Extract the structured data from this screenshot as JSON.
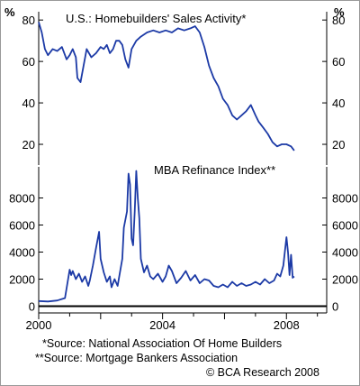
{
  "chart_data": [
    {
      "type": "line",
      "title": "U.S.:   Homebuilders' Sales Activity*",
      "ylabel": "%",
      "ylim": [
        10,
        84
      ],
      "yticks": [
        20,
        40,
        60,
        80
      ],
      "xlim": [
        2000,
        2009.3
      ],
      "grid": false,
      "legend": "none",
      "color": "#1c3aa6",
      "series": [
        {
          "x": [
            2000.0,
            2000.1,
            2000.2,
            2000.3,
            2000.45,
            2000.6,
            2000.75,
            2000.9,
            2001.0,
            2001.1,
            2001.2,
            2001.25,
            2001.35,
            2001.45,
            2001.55,
            2001.7,
            2001.85,
            2002.0,
            2002.1,
            2002.2,
            2002.3,
            2002.4,
            2002.5,
            2002.6,
            2002.7,
            2002.8,
            2002.9,
            2003.0,
            2003.15,
            2003.3,
            2003.5,
            2003.7,
            2003.9,
            2004.1,
            2004.3,
            2004.5,
            2004.7,
            2004.9,
            2005.05,
            2005.2,
            2005.35,
            2005.5,
            2005.65,
            2005.8,
            2005.95,
            2006.1,
            2006.25,
            2006.4,
            2006.55,
            2006.7,
            2006.85,
            2007.0,
            2007.1,
            2007.25,
            2007.4,
            2007.55,
            2007.7,
            2007.85,
            2008.0,
            2008.15,
            2008.25
          ],
          "values": [
            79,
            74,
            66,
            63,
            66,
            65,
            67,
            61,
            63,
            66,
            62,
            52,
            50,
            58,
            66,
            62,
            64,
            67,
            66,
            68,
            64,
            66,
            70,
            70,
            68,
            61,
            57,
            66,
            70,
            72,
            74,
            75,
            74,
            75,
            74,
            76,
            75,
            76,
            77,
            74,
            67,
            58,
            52,
            48,
            42,
            39,
            34,
            32,
            34,
            36,
            39,
            34,
            31,
            28,
            25,
            21,
            19,
            20,
            20,
            19,
            17
          ]
        }
      ]
    },
    {
      "type": "line",
      "title": "MBA Refinance Index**",
      "ylim": [
        -500,
        10300
      ],
      "yticks": [
        0,
        2000,
        4000,
        6000,
        8000
      ],
      "xlim": [
        2000,
        2009.3
      ],
      "xticks": [
        2000,
        2004,
        2008
      ],
      "grid": false,
      "legend": "none",
      "color": "#1c3aa6",
      "series": [
        {
          "x": [
            2000.0,
            2000.3,
            2000.6,
            2000.85,
            2001.0,
            2001.05,
            2001.1,
            2001.2,
            2001.3,
            2001.4,
            2001.5,
            2001.6,
            2001.65,
            2001.75,
            2001.85,
            2001.95,
            2002.0,
            2002.1,
            2002.2,
            2002.3,
            2002.35,
            2002.45,
            2002.55,
            2002.6,
            2002.7,
            2002.75,
            2002.85,
            2002.9,
            2002.95,
            2003.0,
            2003.05,
            2003.1,
            2003.15,
            2003.2,
            2003.25,
            2003.3,
            2003.4,
            2003.5,
            2003.6,
            2003.7,
            2003.85,
            2004.0,
            2004.1,
            2004.2,
            2004.3,
            2004.45,
            2004.6,
            2004.75,
            2004.9,
            2005.05,
            2005.2,
            2005.35,
            2005.5,
            2005.65,
            2005.8,
            2005.95,
            2006.1,
            2006.25,
            2006.4,
            2006.55,
            2006.7,
            2006.85,
            2007.0,
            2007.15,
            2007.3,
            2007.45,
            2007.6,
            2007.7,
            2007.8,
            2007.9,
            2008.0,
            2008.05,
            2008.1,
            2008.15,
            2008.2,
            2008.25
          ],
          "values": [
            380,
            350,
            420,
            600,
            2700,
            2300,
            2600,
            2000,
            2400,
            1800,
            2200,
            1500,
            1900,
            3000,
            4300,
            5500,
            3500,
            2500,
            1800,
            2200,
            1400,
            2000,
            1500,
            2200,
            3500,
            5800,
            7000,
            9800,
            9000,
            5000,
            4500,
            7000,
            10000,
            8000,
            6500,
            3500,
            2500,
            3000,
            2200,
            2000,
            2400,
            1800,
            2200,
            3000,
            2600,
            1700,
            2100,
            2600,
            1900,
            2300,
            1700,
            2000,
            1900,
            1500,
            1400,
            1600,
            1400,
            1800,
            1500,
            1700,
            1500,
            1600,
            1800,
            1600,
            2000,
            1700,
            1900,
            2400,
            2200,
            3000,
            5100,
            4000,
            2300,
            3800,
            2100,
            2200
          ]
        }
      ]
    }
  ],
  "notes": {
    "source1": "*Source: National Association Of Home Builders",
    "source2": "**Source: Mortgage Bankers Association",
    "copyright": "© BCA Research 2008"
  }
}
